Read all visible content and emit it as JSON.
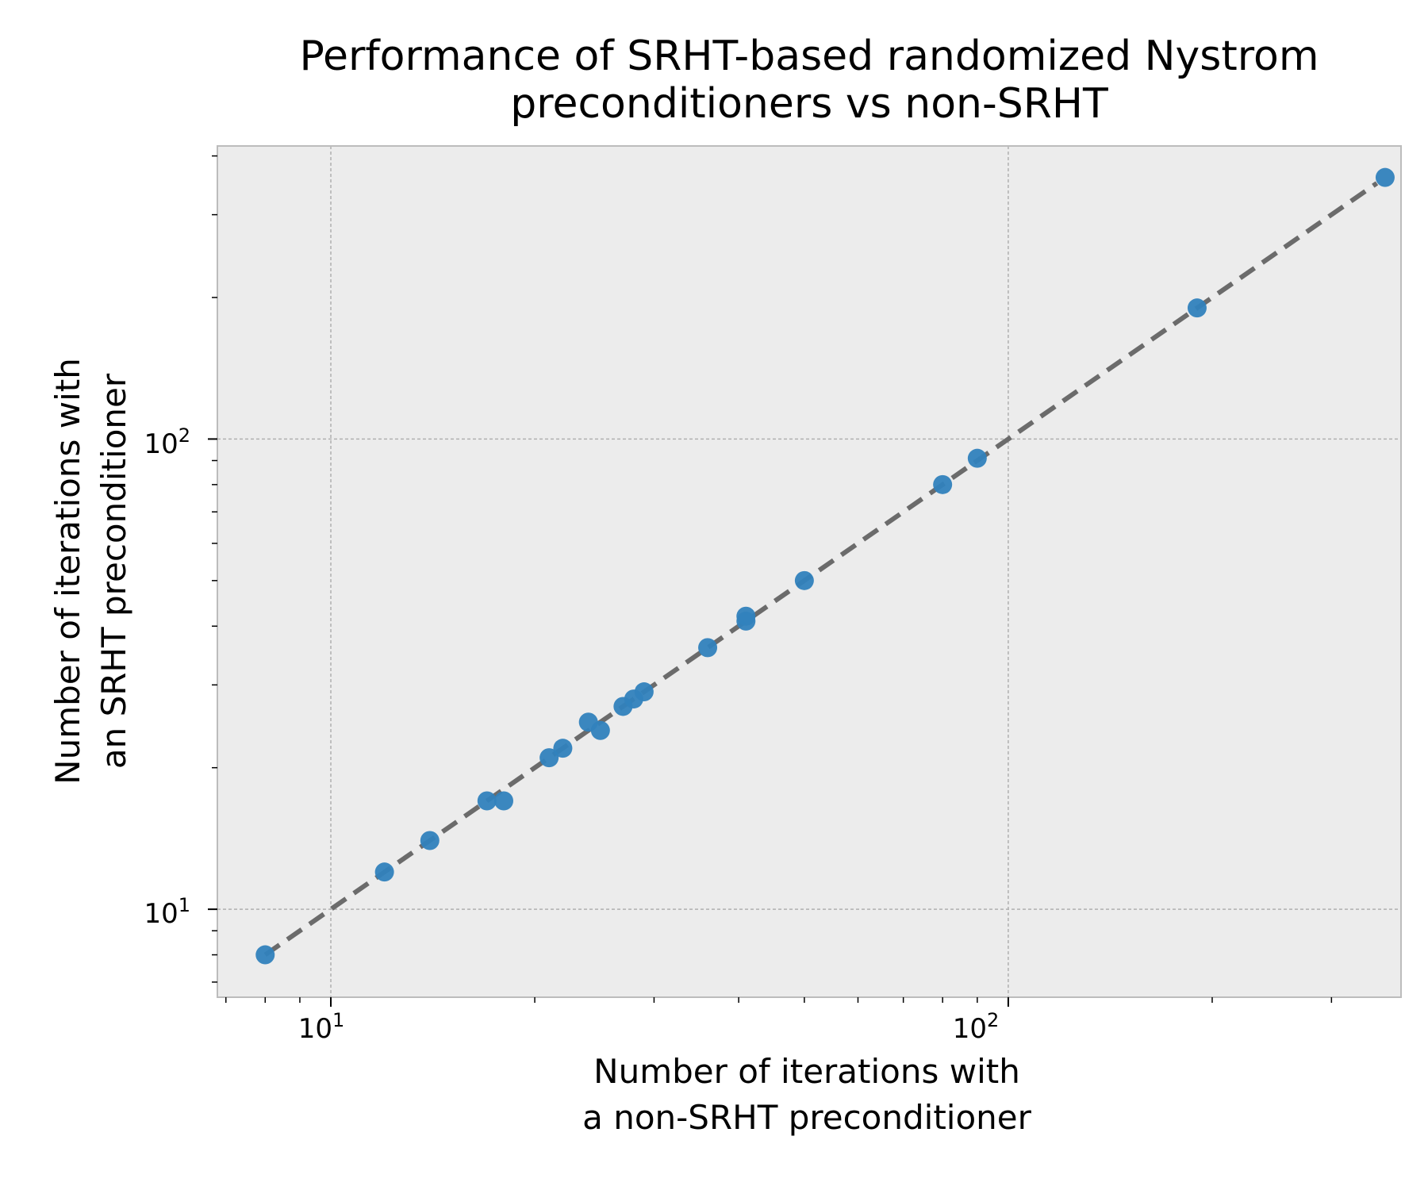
{
  "chart_data": {
    "type": "scatter",
    "title_lines": [
      "Performance of SRHT-based randomized Nystrom",
      "preconditioners vs non-SRHT"
    ],
    "xlabel_lines": [
      "Number of iterations with",
      "a non-SRHT preconditioner"
    ],
    "ylabel_lines": [
      "Number of iterations with",
      "an SRHT preconditioner"
    ],
    "x_scale": "log",
    "y_scale": "log",
    "xlim": [
      6.8,
      380
    ],
    "ylim": [
      6.5,
      420
    ],
    "x_ticks": [
      {
        "base": "10",
        "exp": "1",
        "value": 10
      },
      {
        "base": "10",
        "exp": "2",
        "value": 100
      }
    ],
    "y_ticks": [
      {
        "base": "10",
        "exp": "1",
        "value": 10
      },
      {
        "base": "10",
        "exp": "2",
        "value": 100
      }
    ],
    "grid": true,
    "colors": {
      "points": "#3182bd",
      "reference_line": "#6b6b6b",
      "plot_background": "#ececec",
      "grid": "#b0b0b0",
      "spine": "#bcbcbc"
    },
    "reference_line": {
      "style": "dashed",
      "x": [
        8,
        350
      ],
      "y": [
        8,
        350
      ]
    },
    "points": {
      "x": [
        8,
        12,
        14,
        17,
        18,
        21,
        22,
        24,
        25,
        27,
        28,
        29,
        36,
        41,
        41,
        50,
        80,
        90,
        190,
        360
      ],
      "y": [
        8,
        12,
        14,
        17,
        17,
        21,
        22,
        25,
        24,
        27,
        28,
        29,
        36,
        41,
        42,
        50,
        80,
        91,
        190,
        360
      ]
    }
  }
}
